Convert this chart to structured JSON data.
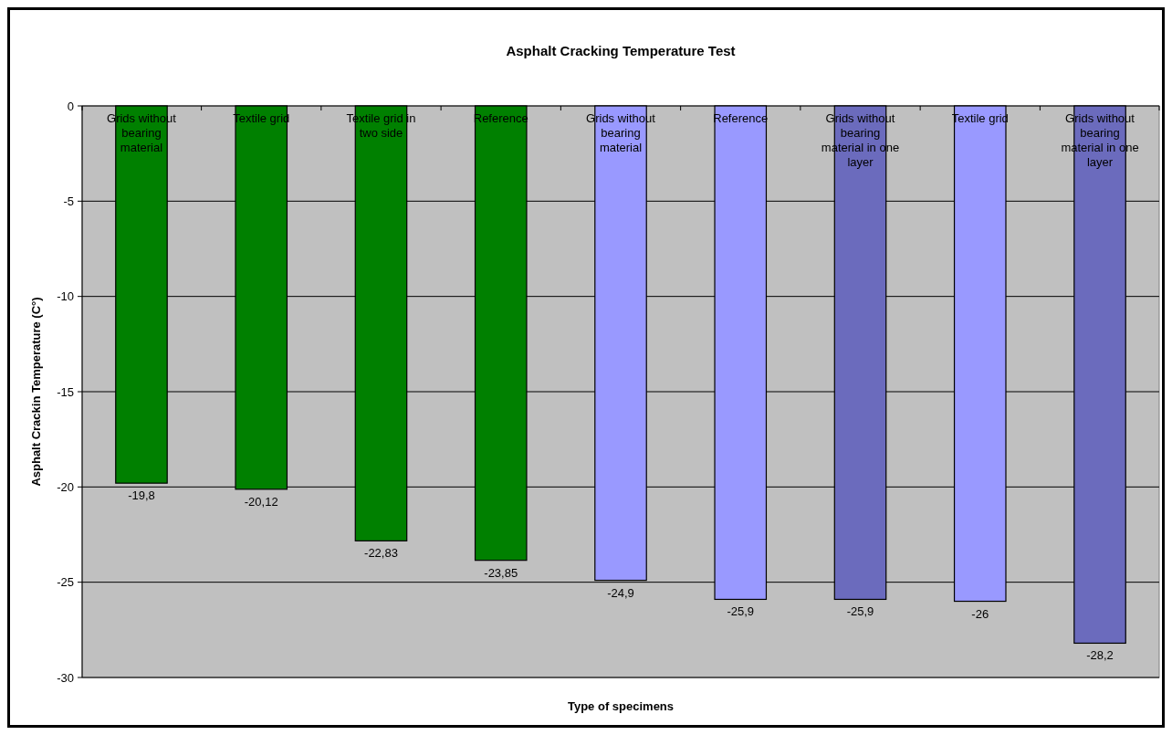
{
  "chart_data": {
    "type": "bar",
    "title": "Asphalt Cracking Temperature Test",
    "xlabel": "Type of specimens",
    "ylabel": "Asphalt Crackin Temperature (C°)",
    "categories": [
      "Grids without bearing material",
      "Textile grid",
      "Textile grid in two side",
      "Reference",
      "Grids without bearing material",
      "Reference",
      "Grids without bearing material in one layer",
      "Textile grid",
      "Grids without bearing material in one layer"
    ],
    "values": [
      -19.8,
      -20.12,
      -22.83,
      -23.85,
      -24.9,
      -25.9,
      -25.9,
      -26,
      -28.2
    ],
    "colors": [
      "#008000",
      "#008000",
      "#008000",
      "#008000",
      "#9999ff",
      "#9999ff",
      "#6b6bbd",
      "#9999ff",
      "#6b6bbd"
    ],
    "value_labels": [
      "-19,8",
      "-20,12",
      "-22,83",
      "-23,85",
      "-24,9",
      "-25,9",
      "-25,9",
      "-26",
      "-28,2"
    ],
    "ylim": [
      -30,
      0
    ],
    "yticks": [
      -30,
      -25,
      -20,
      -15,
      -10,
      -5,
      0
    ],
    "grid": "y"
  }
}
